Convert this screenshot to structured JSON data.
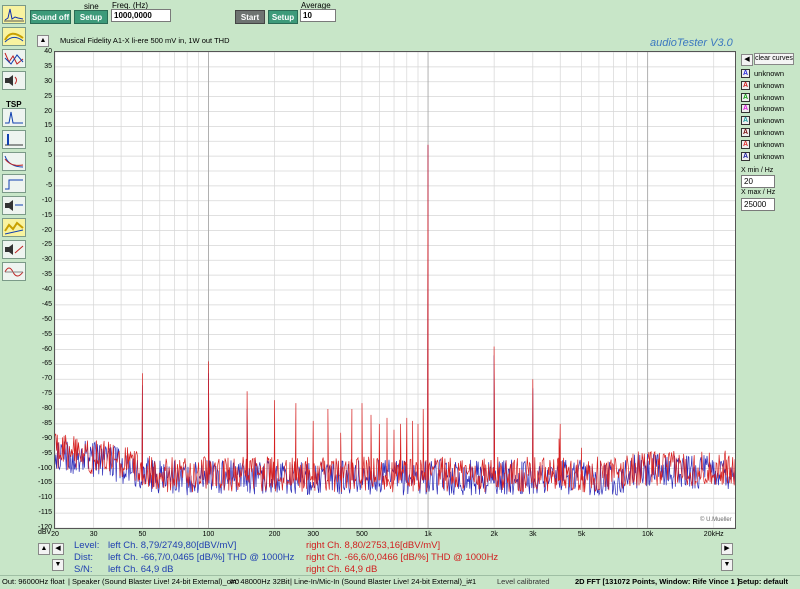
{
  "toolbar": {
    "sound_off": "Sound off",
    "setup1": "Setup",
    "signal_label": "sine",
    "freq_label": "Freq. (Hz)",
    "freq_value": "1000,0000",
    "start": "Start",
    "setup2": "Setup",
    "average_label": "Average",
    "average_value": "10"
  },
  "sidebar": {
    "tsp_label": "TSP",
    "tools": [
      "spectrum-icon",
      "filter-curve-icon",
      "signal-a-icon",
      "speaker-response-icon",
      "tsp-icon",
      "impulse-icon",
      "decay-icon",
      "step-response-icon",
      "speaker-icon",
      "waterfall-icon",
      "speaker-b-icon",
      "phase-icon"
    ]
  },
  "chart_header": {
    "title": "Musical Fidelity A1-X li-ere 500 mV in, 1W out  THD",
    "brand": "audioTester  V3.0",
    "credit": "© U.Mueller"
  },
  "right_panel": {
    "clear_curves": "clear curves",
    "legend": [
      {
        "letter": "A",
        "label": "unknown",
        "color": "#2b2bd9"
      },
      {
        "letter": "A",
        "label": "unknown",
        "color": "#d32020"
      },
      {
        "letter": "A",
        "label": "unknown",
        "color": "#14a014"
      },
      {
        "letter": "A",
        "label": "unknown",
        "color": "#e020e0"
      },
      {
        "letter": "A",
        "label": "unknown",
        "color": "#20a0a0"
      },
      {
        "letter": "A",
        "label": "unknown",
        "color": "#7a1010"
      },
      {
        "letter": "A",
        "label": "unknown",
        "color": "#e03030"
      },
      {
        "letter": "A",
        "label": "unknown",
        "color": "#2020a0"
      }
    ],
    "xmin_label": "X min / Hz",
    "xmin_value": "20",
    "xmax_label": "X max / Hz",
    "xmax_value": "25000"
  },
  "chart_data": {
    "type": "line",
    "title": "Musical Fidelity A1-X li-ere 500 mV in, 1W out  THD",
    "xlabel": "",
    "ylabel": "dBV",
    "x_scale": "log",
    "xlim": [
      20,
      25000
    ],
    "ylim": [
      -120,
      40
    ],
    "grid": true,
    "y_ticks": [
      40,
      35,
      30,
      25,
      20,
      15,
      10,
      5,
      0,
      -5,
      -10,
      -15,
      -20,
      -25,
      -30,
      -35,
      -40,
      -45,
      -50,
      -55,
      -60,
      -65,
      -70,
      -75,
      -80,
      -85,
      -90,
      -95,
      -100,
      -105,
      -110,
      -115,
      -120
    ],
    "x_tick_labels": [
      {
        "f": 20,
        "label": "20"
      },
      {
        "f": 30,
        "label": "30"
      },
      {
        "f": 50,
        "label": "50"
      },
      {
        "f": 100,
        "label": "100"
      },
      {
        "f": 200,
        "label": "200"
      },
      {
        "f": 300,
        "label": "300"
      },
      {
        "f": 500,
        "label": "500"
      },
      {
        "f": 1000,
        "label": "1k"
      },
      {
        "f": 2000,
        "label": "2k"
      },
      {
        "f": 3000,
        "label": "3k"
      },
      {
        "f": 5000,
        "label": "5k"
      },
      {
        "f": 10000,
        "label": "10k"
      },
      {
        "f": 20000,
        "label": "20kHz"
      }
    ],
    "y_unit_label": "dBV",
    "series": [
      {
        "name": "right Ch.",
        "color": "#d62020",
        "noise_floor": -102,
        "peaks": [
          [
            1000,
            8.8
          ],
          [
            50,
            -68
          ],
          [
            100,
            -64
          ],
          [
            150,
            -74
          ],
          [
            200,
            -77
          ],
          [
            250,
            -78
          ],
          [
            300,
            -84
          ],
          [
            350,
            -80
          ],
          [
            400,
            -88
          ],
          [
            450,
            -80
          ],
          [
            500,
            -78
          ],
          [
            550,
            -82
          ],
          [
            600,
            -85
          ],
          [
            650,
            -83
          ],
          [
            700,
            -87
          ],
          [
            750,
            -85
          ],
          [
            800,
            -83
          ],
          [
            850,
            -84
          ],
          [
            900,
            -85
          ],
          [
            950,
            -80
          ],
          [
            2000,
            -59
          ],
          [
            3000,
            -70
          ],
          [
            4000,
            -85
          ],
          [
            5000,
            -93
          ],
          [
            3950,
            -90
          ]
        ]
      },
      {
        "name": "left Ch.",
        "color": "#2a2ab8",
        "noise_floor": -103,
        "peaks": [
          [
            1000,
            8.7
          ],
          [
            50,
            -72
          ],
          [
            100,
            -68
          ],
          [
            150,
            -80
          ],
          [
            2000,
            -62
          ],
          [
            3000,
            -73
          ]
        ]
      }
    ]
  },
  "measurements": {
    "level_label": "Level:",
    "dist_label": "Dist:",
    "sn_label": "S/N:",
    "left_level": "left Ch. 8,79/2749,80[dBV/mV]",
    "left_dist": "left Ch. -66,7/0,0465 [dB/%] THD @ 1000Hz",
    "left_sn": "left Ch. 64,9 dB",
    "right_level": "right Ch. 8,80/2753,16[dBV/mV]",
    "right_dist": "right Ch. -66,6/0,0466 [dB/%] THD @ 1000Hz",
    "right_sn": "right Ch. 64,9 dB",
    "left_color": "#1f3fb0",
    "right_color": "#d11e1e"
  },
  "status_bar": {
    "out": "Out: 96000Hz float",
    "speaker": "| Speaker (Sound Blaster Live! 24-bit External)_o#0",
    "in": "In: 48000Hz 32Bit",
    "linein": "| Line-In/Mic-In (Sound Blaster Live! 24-bit External)_i#1",
    "calib": "Level calibrated",
    "mode": "2D FFT [131072 Points, Window: Rife Vince 1 ]",
    "setup": "Setup:  default"
  }
}
